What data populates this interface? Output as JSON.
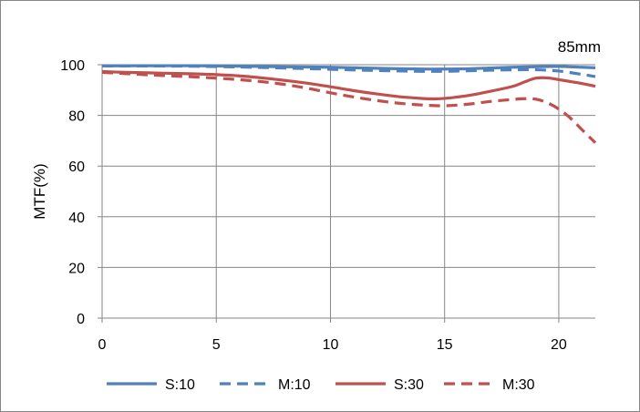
{
  "chart_data": {
    "type": "line",
    "title": "",
    "annotation": "85mm",
    "xlabel": "",
    "ylabel": "MTF(%)",
    "xlim": [
      0,
      21.6
    ],
    "ylim": [
      0,
      100
    ],
    "xticks": [
      0,
      5,
      10,
      15,
      20
    ],
    "yticks": [
      0,
      20,
      40,
      60,
      80,
      100
    ],
    "xtick_labels": [
      "0",
      "5",
      "10",
      "15",
      "20"
    ],
    "ytick_labels": [
      "0",
      "20",
      "40",
      "60",
      "80",
      "100"
    ],
    "grid": true,
    "legend_position": "bottom",
    "series": [
      {
        "name": "S:10",
        "color": "#4f81bd",
        "style": "solid",
        "x": [
          0,
          2,
          4,
          6,
          8,
          10,
          12,
          14,
          15,
          16,
          18,
          19,
          20,
          21,
          21.6
        ],
        "y": [
          99.5,
          99.6,
          99.6,
          99.4,
          99.2,
          99,
          98.6,
          98.3,
          98.3,
          98.4,
          99,
          99.2,
          99.3,
          99,
          98.8
        ]
      },
      {
        "name": "M:10",
        "color": "#4f81bd",
        "style": "dashed",
        "x": [
          0,
          2,
          4,
          6,
          8,
          10,
          12,
          14,
          15,
          16,
          18,
          19,
          20,
          21,
          21.6
        ],
        "y": [
          99.5,
          99.5,
          99.4,
          99.1,
          98.7,
          98.2,
          97.7,
          97.4,
          97.4,
          97.6,
          98,
          98,
          97.5,
          96.2,
          95.3
        ]
      },
      {
        "name": "S:30",
        "color": "#c0504d",
        "style": "solid",
        "x": [
          0,
          1,
          2,
          3,
          4,
          5,
          6,
          7,
          8,
          9,
          10,
          11,
          12,
          13,
          14,
          14.5,
          15,
          16,
          17,
          18,
          18.5,
          19,
          19.5,
          20,
          21,
          21.6
        ],
        "y": [
          97.3,
          97,
          96.8,
          96.6,
          96.4,
          96.1,
          95.6,
          94.8,
          93.8,
          92.7,
          91.3,
          89.8,
          88.5,
          87.4,
          86.7,
          86.5,
          86.7,
          87.8,
          89.5,
          91.5,
          93.2,
          94.7,
          94.8,
          94.1,
          92.6,
          91.5
        ]
      },
      {
        "name": "M:30",
        "color": "#c0504d",
        "style": "dashed",
        "x": [
          0,
          1,
          2,
          3,
          4,
          5,
          6,
          7,
          8,
          9,
          10,
          11,
          12,
          13,
          14,
          15,
          16,
          17,
          18,
          18.5,
          19,
          19.5,
          20,
          20.5,
          21,
          21.6
        ],
        "y": [
          97,
          96.5,
          96,
          95.6,
          95.2,
          94.7,
          94.1,
          93.3,
          92.2,
          90.7,
          88.9,
          87.3,
          85.9,
          84.8,
          84.1,
          83.8,
          84.4,
          85.5,
          86.3,
          86.6,
          86.4,
          85,
          82.5,
          79,
          74.5,
          69.2
        ]
      }
    ]
  }
}
